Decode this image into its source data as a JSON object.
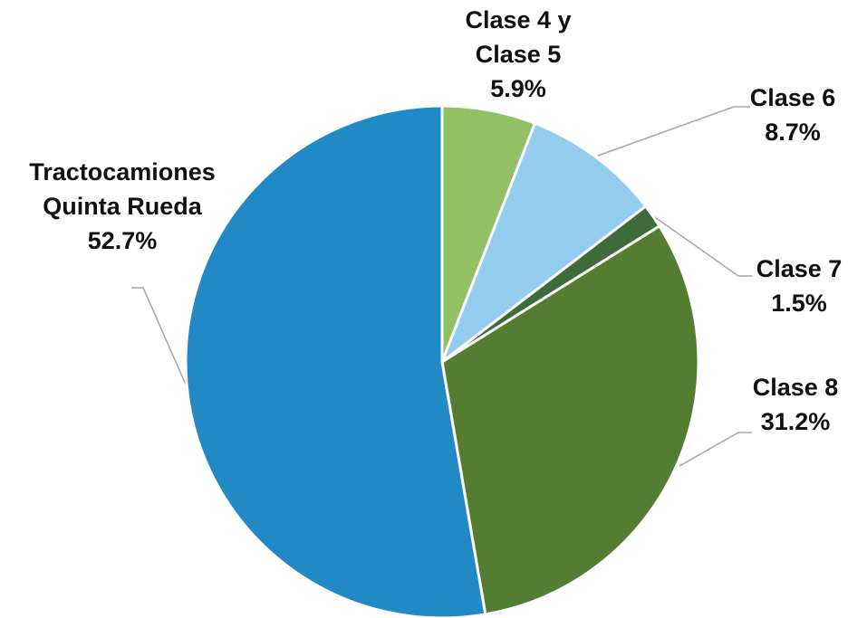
{
  "chart_data": {
    "type": "pie",
    "categories": [
      "Clase 4 y Clase 5",
      "Clase 6",
      "Clase 7",
      "Clase 8",
      "Tractocamiones Quinta Rueda"
    ],
    "values": [
      5.9,
      8.7,
      1.5,
      31.2,
      52.7
    ],
    "value_labels": [
      "5.9%",
      "8.7%",
      "1.5%",
      "31.2%",
      "52.7%"
    ],
    "colors": [
      "#92c064",
      "#93ccec",
      "#3d6b3a",
      "#557d32",
      "#218ac4"
    ]
  }
}
